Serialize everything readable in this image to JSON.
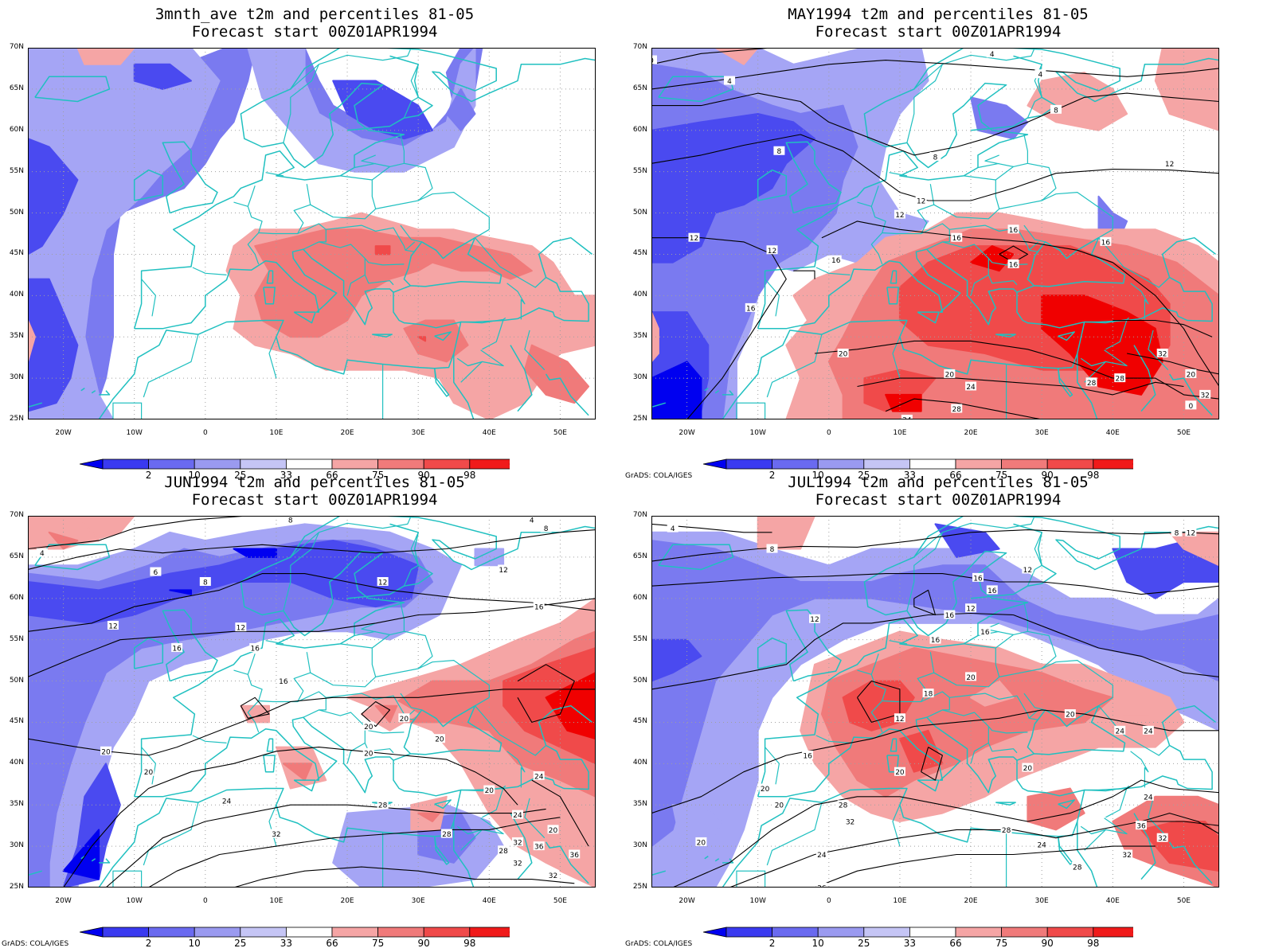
{
  "colors": {
    "blue_2": "#0000f0",
    "blue_10": "#4a4af0",
    "blue_25": "#7a7af0",
    "blue_33": "#a5a5f5",
    "red_66": "#f5a5a5",
    "red_75": "#f07a7a",
    "red_90": "#f04a4a",
    "red_98": "#f00000",
    "coast": "#20c0c0",
    "contour": "#000000",
    "grid": "#a0a0a0"
  },
  "lat_labels": [
    "70N",
    "65N",
    "60N",
    "55N",
    "50N",
    "45N",
    "40N",
    "35N",
    "30N",
    "25N"
  ],
  "lon_labels": [
    "20W",
    "10W",
    "0",
    "10E",
    "20E",
    "30E",
    "40E",
    "50E"
  ],
  "colorbar": {
    "ticks": [
      "2",
      "10",
      "25",
      "33",
      "66",
      "75",
      "90",
      "98"
    ],
    "fill_colors": [
      "#0000f0",
      "#3a3af0",
      "#6a6af0",
      "#9a9af0",
      "#c5c5f5",
      "#ffffff",
      "#f5a5a5",
      "#f07a7a",
      "#f04a4a",
      "#f01a1a",
      "#f00000"
    ]
  },
  "credit": "GrADS: COLA/IGES",
  "panels": [
    {
      "title1": "3mnth_ave t2m and percentiles 81-05",
      "title2": "Forecast start 00Z01APR1994",
      "credit": "",
      "contour_labels": []
    },
    {
      "title1": "MAY1994 t2m and percentiles 81-05",
      "title2": "Forecast start 00Z01APR1994",
      "credit": "GrADS: COLA/IGES",
      "contour_labels": [
        "0",
        "4",
        "4",
        "4",
        "8",
        "8",
        "8",
        "12",
        "12",
        "12",
        "12",
        "12",
        "16",
        "16",
        "16",
        "16",
        "16",
        "16",
        "20",
        "20",
        "20",
        "24",
        "24",
        "28",
        "28",
        "28",
        "32",
        "32",
        "0"
      ]
    },
    {
      "title1": "JUN1994 t2m and percentiles 81-05",
      "title2": "Forecast start 00Z01APR1994",
      "credit": "GrADS: COLA/IGES",
      "contour_labels": [
        "4",
        "8",
        "4",
        "8",
        "6",
        "12",
        "12",
        "8",
        "16",
        "12",
        "12",
        "16",
        "16",
        "16",
        "20",
        "20",
        "20",
        "20",
        "20",
        "20",
        "20",
        "24",
        "24",
        "24",
        "28",
        "28",
        "28",
        "32",
        "32",
        "32",
        "32",
        "36",
        "36",
        "20"
      ]
    },
    {
      "title1": "JUL1994 t2m and percentiles 81-05",
      "title2": "Forecast start 00Z01APR1994",
      "credit": "GrADS: COLA/IGES",
      "contour_labels": [
        "4",
        "8",
        "8",
        "12",
        "12",
        "12",
        "16",
        "16",
        "16",
        "16",
        "12",
        "16",
        "12",
        "16",
        "18",
        "20",
        "20",
        "20",
        "20",
        "20",
        "20",
        "24",
        "24",
        "24",
        "24",
        "24",
        "28",
        "28",
        "28",
        "32",
        "32",
        "32",
        "36",
        "36",
        "20"
      ]
    }
  ]
}
